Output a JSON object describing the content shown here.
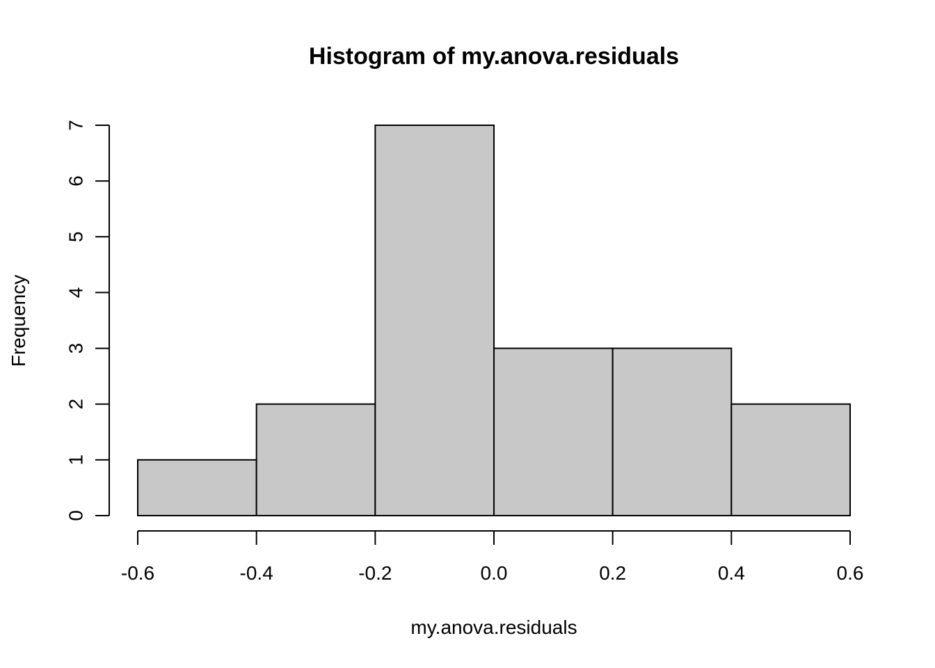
{
  "chart_data": {
    "type": "bar",
    "title": "Histogram of my.anova.residuals",
    "xlabel": "my.anova.residuals",
    "ylabel": "Frequency",
    "bins": [
      {
        "from": -0.6,
        "to": -0.4,
        "count": 1
      },
      {
        "from": -0.4,
        "to": -0.2,
        "count": 2
      },
      {
        "from": -0.2,
        "to": 0.0,
        "count": 7
      },
      {
        "from": 0.0,
        "to": 0.2,
        "count": 3
      },
      {
        "from": 0.2,
        "to": 0.4,
        "count": 3
      },
      {
        "from": 0.4,
        "to": 0.6,
        "count": 2
      }
    ],
    "xlim": [
      -0.6,
      0.6
    ],
    "ylim": [
      0,
      7
    ],
    "x_ticks": [
      "-0.6",
      "-0.4",
      "-0.2",
      "0.0",
      "0.2",
      "0.4",
      "0.6"
    ],
    "y_ticks": [
      "0",
      "1",
      "2",
      "3",
      "4",
      "5",
      "6",
      "7"
    ],
    "grid": false,
    "colors": {
      "bar_fill": "#c8c8c8",
      "bar_stroke": "#000000",
      "background": "#ffffff"
    }
  }
}
